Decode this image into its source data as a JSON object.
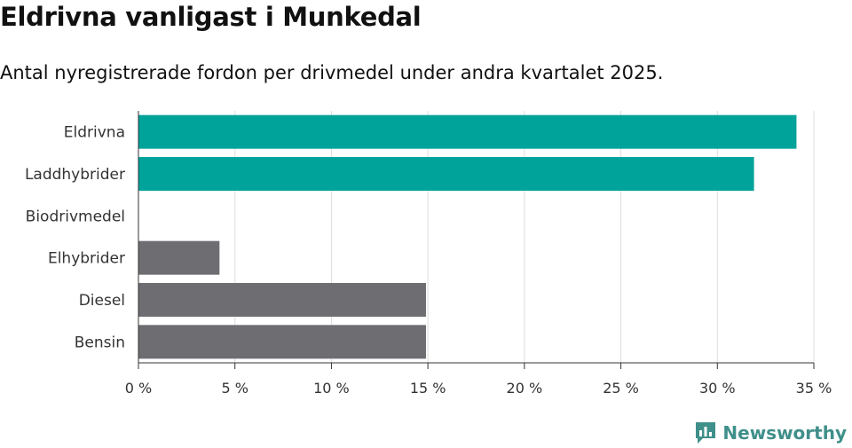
{
  "header": {
    "title": "Eldrivna vanligast i Munkedal",
    "subtitle": "Antal nyregistrerade fordon per drivmedel under andra kvartalet 2025."
  },
  "brand": {
    "name": "Newsworthy",
    "logo_icon": "bar-chart-icon",
    "color": "#3f8f8a"
  },
  "colors": {
    "highlight": "#00a39a",
    "default": "#6d6d72",
    "grid": "#dddddd"
  },
  "chart_data": {
    "type": "bar",
    "orientation": "horizontal",
    "title": "Eldrivna vanligast i Munkedal",
    "subtitle": "Antal nyregistrerade fordon per drivmedel under andra kvartalet 2025.",
    "categories": [
      "Eldrivna",
      "Laddhybrider",
      "Biodrivmedel",
      "Elhybrider",
      "Diesel",
      "Bensin"
    ],
    "values": [
      34.1,
      31.9,
      0,
      4.2,
      14.9,
      14.9
    ],
    "highlighted": [
      true,
      true,
      false,
      false,
      false,
      false
    ],
    "xlim": [
      0,
      35
    ],
    "xticks": [
      0,
      5,
      10,
      15,
      20,
      25,
      30,
      35
    ],
    "xtick_labels": [
      "0 %",
      "5 %",
      "10 %",
      "15 %",
      "20 %",
      "25 %",
      "30 %",
      "35 %"
    ],
    "grid": true,
    "legend": "none"
  }
}
